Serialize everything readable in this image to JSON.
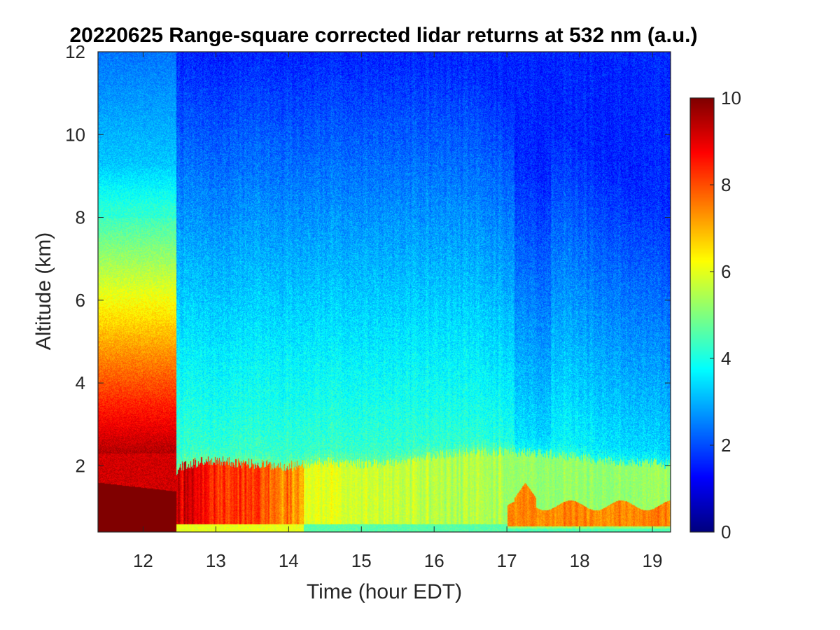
{
  "chart_data": {
    "type": "heatmap",
    "title": "20220625  Range-square corrected lidar returns at 532 nm (a.u.)",
    "xlabel": "Time (hour EDT)",
    "ylabel": "Altitude (km)",
    "xlim": [
      11.38,
      19.25
    ],
    "ylim": [
      0.4,
      12
    ],
    "x_ticks": [
      12,
      13,
      14,
      15,
      16,
      17,
      18,
      19
    ],
    "y_ticks": [
      2,
      4,
      6,
      8,
      10,
      12
    ],
    "colormap": "jet",
    "colorbar": {
      "range": [
        0,
        10
      ],
      "ticks": [
        0,
        2,
        4,
        6,
        8,
        10
      ],
      "placement": "right"
    },
    "grid": false,
    "boundary_layer_top_km": [
      [
        11.4,
        1.75
      ],
      [
        12.0,
        1.55
      ],
      [
        12.45,
        1.75
      ],
      [
        12.5,
        2.0
      ],
      [
        12.9,
        2.15
      ],
      [
        13.5,
        2.05
      ],
      [
        14.0,
        2.0
      ],
      [
        14.5,
        2.1
      ],
      [
        15.0,
        2.05
      ],
      [
        15.5,
        2.1
      ],
      [
        16.0,
        2.25
      ],
      [
        16.5,
        2.35
      ],
      [
        17.0,
        2.35
      ],
      [
        17.5,
        2.3
      ],
      [
        18.0,
        2.2
      ],
      [
        18.5,
        2.1
      ],
      [
        19.25,
        2.05
      ]
    ],
    "notes_visible": {
      "early_period_end_hour": 12.45,
      "late_aerosol_layer_start_hour": 17.0
    }
  }
}
